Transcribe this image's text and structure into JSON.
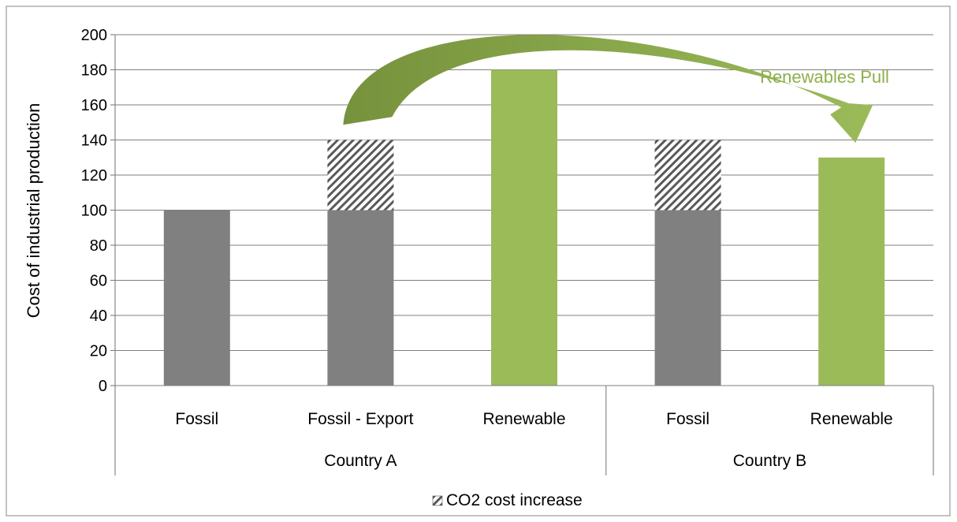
{
  "chart_data": {
    "type": "bar",
    "stacked": true,
    "title": "",
    "xlabel": "",
    "ylabel": "Cost of industrial production",
    "ylim": [
      0,
      200
    ],
    "yticks": [
      "0",
      "20",
      "40",
      "60",
      "80",
      "100",
      "120",
      "140",
      "160",
      "180",
      "200"
    ],
    "grid": true,
    "groups": [
      {
        "label": "Country A",
        "categories": [
          {
            "label": "Fossil",
            "base": 100,
            "co2": 0,
            "kind": "fossil"
          },
          {
            "label": "Fossil - Export",
            "base": 100,
            "co2": 40,
            "kind": "fossil"
          },
          {
            "label": "Renewable",
            "base": 180,
            "co2": 0,
            "kind": "renewable"
          }
        ]
      },
      {
        "label": "Country B",
        "categories": [
          {
            "label": "Fossil",
            "base": 100,
            "co2": 40,
            "kind": "fossil"
          },
          {
            "label": "Renewable",
            "base": 130,
            "co2": 0,
            "kind": "renewable"
          }
        ]
      }
    ],
    "legend": {
      "position": "bottom",
      "entries": [
        {
          "label": "CO2 cost increase",
          "pattern": "hatch"
        }
      ]
    },
    "annotation": {
      "text": "Renewables Pull",
      "from": {
        "group": 0,
        "category": 1,
        "value": 150
      },
      "to": {
        "group": 1,
        "category": 1,
        "value": 137
      }
    },
    "colors": {
      "fossil": "#808080",
      "renewable": "#9BBB59",
      "arrow": "#7E9B43",
      "arrow_light": "#9BBB59",
      "annotation_text": "#8DB04A",
      "grid": "#7F7F7F",
      "hatch": "#595959"
    }
  }
}
